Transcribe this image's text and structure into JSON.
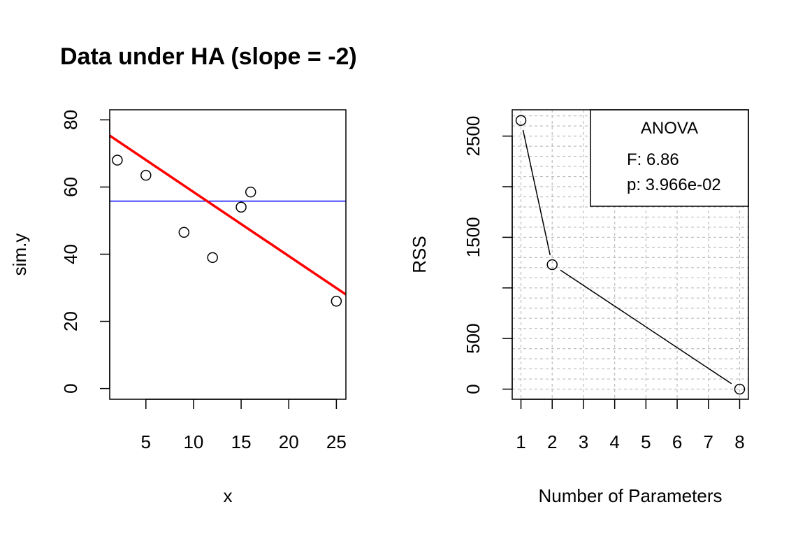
{
  "title": "Data under HA (slope = -2)",
  "chart_data": [
    {
      "type": "scatter",
      "xlabel": "x",
      "ylabel": "sim.y",
      "xlim": [
        1.2,
        26
      ],
      "ylim": [
        -3.2,
        83
      ],
      "xticks": [
        5,
        10,
        15,
        20,
        25
      ],
      "yticks": [
        0,
        20,
        40,
        60,
        80
      ],
      "points": [
        {
          "x": 2,
          "y": 68
        },
        {
          "x": 5,
          "y": 63.5
        },
        {
          "x": 9,
          "y": 46.5
        },
        {
          "x": 12,
          "y": 39
        },
        {
          "x": 15,
          "y": 54
        },
        {
          "x": 16,
          "y": 58.5
        },
        {
          "x": 25,
          "y": 26
        }
      ],
      "lines": [
        {
          "kind": "null-model-mean",
          "color": "#0000ff",
          "y": 55.8
        },
        {
          "kind": "ha-regression",
          "color": "#ff0000",
          "x0": 1.2,
          "y0": 75.3,
          "x1": 26,
          "y1": 28
        }
      ],
      "grid": false
    },
    {
      "type": "line",
      "xlabel": "Number of Parameters",
      "ylabel": "RSS",
      "xlim": [
        0.72,
        8.28
      ],
      "ylim": [
        -100,
        2760
      ],
      "xticks": [
        1,
        2,
        3,
        4,
        5,
        6,
        7,
        8
      ],
      "yticks": [
        0,
        500,
        1500,
        2500
      ],
      "minor_yticks": [
        1000,
        2000
      ],
      "x": [
        1,
        2,
        8
      ],
      "y": [
        2655,
        1230,
        0
      ],
      "grid": true,
      "grid_x": [
        1,
        2,
        3,
        4,
        5,
        6,
        7,
        8
      ],
      "grid_y_step": 100,
      "legend": {
        "position": "top-right",
        "title": "ANOVA",
        "lines": [
          "F: 6.86",
          "p: 3.966e-02"
        ]
      }
    }
  ]
}
